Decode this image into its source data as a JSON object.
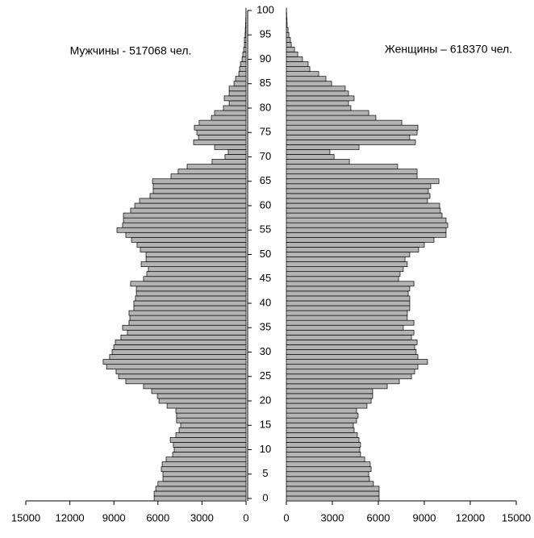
{
  "chart_data": {
    "type": "pyramid",
    "annotations": [
      "Мужчины - 517068 чел.",
      "Женщины – 618370 чел."
    ],
    "categories": [
      0,
      1,
      2,
      3,
      4,
      5,
      6,
      7,
      8,
      9,
      10,
      11,
      12,
      13,
      14,
      15,
      16,
      17,
      18,
      19,
      20,
      21,
      22,
      23,
      24,
      25,
      26,
      27,
      28,
      29,
      30,
      31,
      32,
      33,
      34,
      35,
      36,
      37,
      38,
      39,
      40,
      41,
      42,
      43,
      44,
      45,
      46,
      47,
      48,
      49,
      50,
      51,
      52,
      53,
      54,
      55,
      56,
      57,
      58,
      59,
      60,
      61,
      62,
      63,
      64,
      65,
      66,
      67,
      68,
      69,
      70,
      71,
      72,
      73,
      74,
      75,
      76,
      77,
      78,
      79,
      80,
      81,
      82,
      83,
      84,
      85,
      86,
      87,
      88,
      89,
      90,
      91,
      92,
      93,
      94,
      95,
      96,
      97,
      98,
      99,
      100
    ],
    "series": [
      {
        "color": "#b3b3b3",
        "values": [
          6260,
          6260,
          6150,
          6000,
          5660,
          5660,
          5770,
          5710,
          5440,
          5000,
          4890,
          4950,
          5160,
          4780,
          4560,
          4450,
          4730,
          4730,
          4780,
          5380,
          5930,
          6040,
          6430,
          6980,
          8190,
          8680,
          8850,
          9500,
          9730,
          9290,
          9120,
          9010,
          8900,
          8520,
          8080,
          8410,
          7970,
          7910,
          7970,
          7640,
          7640,
          7530,
          7470,
          7470,
          7860,
          6980,
          6760,
          6650,
          7140,
          6810,
          6810,
          7200,
          7420,
          7800,
          8190,
          8790,
          8410,
          8350,
          8350,
          7860,
          7580,
          7250,
          6540,
          6320,
          6320,
          6370,
          5110,
          4620,
          4010,
          2310,
          1430,
          1210,
          2140,
          3570,
          3240,
          3350,
          3520,
          3190,
          2360,
          2140,
          1540,
          1150,
          1480,
          1150,
          1150,
          820,
          710,
          490,
          440,
          380,
          270,
          220,
          160,
          110,
          110,
          60,
          50,
          30,
          20,
          10,
          10
        ]
      },
      {
        "color": "#b3b3b3",
        "values": [
          6050,
          6050,
          6050,
          5680,
          5420,
          5370,
          5530,
          5470,
          5110,
          4840,
          4790,
          4840,
          4740,
          4630,
          4420,
          4370,
          4580,
          4680,
          4580,
          5260,
          5530,
          5630,
          5630,
          6580,
          7370,
          8160,
          8370,
          8580,
          9210,
          8580,
          8470,
          8370,
          8530,
          8160,
          8320,
          7630,
          8320,
          7890,
          7890,
          8050,
          8050,
          8050,
          7950,
          8050,
          8320,
          7320,
          7420,
          7630,
          7890,
          7740,
          8050,
          8630,
          9000,
          9630,
          10420,
          10420,
          10530,
          10420,
          10160,
          10050,
          10000,
          9210,
          9370,
          9260,
          9420,
          9950,
          8530,
          8530,
          7260,
          4110,
          3110,
          2840,
          4740,
          8420,
          8050,
          8530,
          8580,
          7530,
          5840,
          5370,
          4210,
          4050,
          4420,
          4050,
          3840,
          2950,
          2580,
          2110,
          1530,
          1420,
          1050,
          740,
          530,
          320,
          260,
          160,
          110,
          50,
          40,
          20,
          10
        ]
      }
    ],
    "ylim": [
      0,
      100
    ],
    "yticks": [
      0,
      5,
      10,
      15,
      20,
      25,
      30,
      35,
      40,
      45,
      50,
      55,
      60,
      65,
      70,
      75,
      80,
      85,
      90,
      95,
      100
    ],
    "xlim": [
      0,
      15000
    ],
    "xticks": [
      0,
      3000,
      6000,
      9000,
      12000,
      15000
    ]
  }
}
